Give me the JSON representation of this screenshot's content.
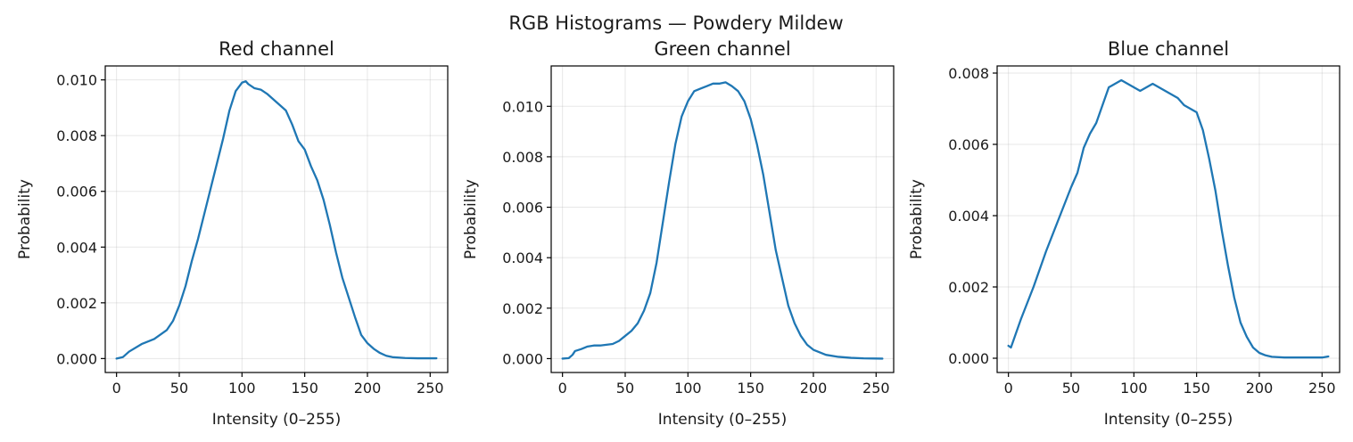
{
  "figure": {
    "title": "RGB Histograms — Powdery Mildew"
  },
  "chart_data": [
    {
      "type": "line",
      "title": "Red channel",
      "xlabel": "Intensity (0–255)",
      "ylabel": "Probability",
      "xlim": [
        -9,
        264
      ],
      "ylim": [
        -0.0005,
        0.0105
      ],
      "xticks": [
        0,
        50,
        100,
        150,
        200,
        250
      ],
      "yticks": [
        0.0,
        0.002,
        0.004,
        0.006,
        0.008,
        0.01
      ],
      "ytick_decimals": 3,
      "grid": true,
      "color": "#1f77b4",
      "series": [
        {
          "x": [
            0,
            5,
            10,
            20,
            30,
            40,
            45,
            50,
            55,
            60,
            65,
            70,
            75,
            80,
            85,
            90,
            95,
            100,
            103,
            105,
            110,
            115,
            120,
            125,
            130,
            135,
            140,
            145,
            150,
            155,
            160,
            165,
            170,
            175,
            180,
            185,
            190,
            195,
            200,
            205,
            210,
            215,
            220,
            230,
            240,
            255
          ],
          "y": [
            0.0,
            5e-05,
            0.00025,
            0.00052,
            0.0007,
            0.00102,
            0.00135,
            0.0019,
            0.0026,
            0.0035,
            0.0043,
            0.0052,
            0.0061,
            0.007,
            0.0079,
            0.0089,
            0.0096,
            0.0099,
            0.00995,
            0.00985,
            0.0097,
            0.00965,
            0.0095,
            0.0093,
            0.0091,
            0.0089,
            0.0084,
            0.0078,
            0.0075,
            0.0069,
            0.0064,
            0.0057,
            0.0048,
            0.0038,
            0.0029,
            0.0022,
            0.0015,
            0.00085,
            0.00055,
            0.00035,
            0.0002,
            0.0001,
            5e-05,
            2e-05,
            1e-05,
            1e-05
          ]
        }
      ]
    },
    {
      "type": "line",
      "title": "Green channel",
      "xlabel": "Intensity (0–255)",
      "ylabel": "Probability",
      "xlim": [
        -9,
        264
      ],
      "ylim": [
        -0.00055,
        0.0116
      ],
      "xticks": [
        0,
        50,
        100,
        150,
        200,
        250
      ],
      "yticks": [
        0.0,
        0.002,
        0.004,
        0.006,
        0.008,
        0.01
      ],
      "ytick_decimals": 3,
      "grid": true,
      "color": "#1f77b4",
      "series": [
        {
          "x": [
            0,
            5,
            8,
            10,
            15,
            20,
            25,
            30,
            40,
            45,
            50,
            55,
            60,
            65,
            70,
            75,
            80,
            85,
            90,
            95,
            100,
            105,
            110,
            115,
            120,
            125,
            130,
            135,
            140,
            145,
            150,
            155,
            160,
            165,
            170,
            175,
            180,
            185,
            190,
            195,
            200,
            210,
            220,
            230,
            240,
            255
          ],
          "y": [
            0.0,
            2e-05,
            0.00015,
            0.0003,
            0.00038,
            0.00048,
            0.00052,
            0.00052,
            0.00058,
            0.0007,
            0.0009,
            0.0011,
            0.0014,
            0.0019,
            0.0026,
            0.0038,
            0.0054,
            0.007,
            0.0085,
            0.0096,
            0.0102,
            0.0106,
            0.0107,
            0.0108,
            0.0109,
            0.0109,
            0.01095,
            0.0108,
            0.0106,
            0.0102,
            0.0095,
            0.0085,
            0.0073,
            0.0058,
            0.0043,
            0.0032,
            0.0021,
            0.0014,
            0.0009,
            0.00055,
            0.00035,
            0.00015,
            7e-05,
            3e-05,
            1e-05,
            0.0
          ]
        }
      ]
    },
    {
      "type": "line",
      "title": "Blue channel",
      "xlabel": "Intensity (0–255)",
      "ylabel": "Probability",
      "xlim": [
        -9,
        264
      ],
      "ylim": [
        -0.0004,
        0.0082
      ],
      "xticks": [
        0,
        50,
        100,
        150,
        200,
        250
      ],
      "yticks": [
        0.0,
        0.002,
        0.004,
        0.006,
        0.008
      ],
      "ytick_decimals": 3,
      "grid": true,
      "color": "#1f77b4",
      "series": [
        {
          "x": [
            0,
            2,
            5,
            10,
            20,
            30,
            40,
            50,
            55,
            60,
            65,
            70,
            75,
            80,
            85,
            90,
            95,
            100,
            105,
            110,
            115,
            120,
            125,
            130,
            135,
            140,
            145,
            150,
            155,
            160,
            165,
            170,
            175,
            180,
            185,
            190,
            195,
            200,
            205,
            210,
            220,
            230,
            240,
            250,
            255
          ],
          "y": [
            0.00035,
            0.0003,
            0.0006,
            0.0011,
            0.002,
            0.003,
            0.0039,
            0.0048,
            0.0052,
            0.0059,
            0.0063,
            0.0066,
            0.0071,
            0.0076,
            0.0077,
            0.0078,
            0.0077,
            0.0076,
            0.0075,
            0.0076,
            0.0077,
            0.0076,
            0.0075,
            0.0074,
            0.0073,
            0.0071,
            0.007,
            0.0069,
            0.0064,
            0.0056,
            0.0047,
            0.0036,
            0.0026,
            0.0017,
            0.001,
            0.0006,
            0.0003,
            0.00015,
            8e-05,
            4e-05,
            2e-05,
            2e-05,
            2e-05,
            2e-05,
            5e-05
          ]
        }
      ]
    }
  ]
}
